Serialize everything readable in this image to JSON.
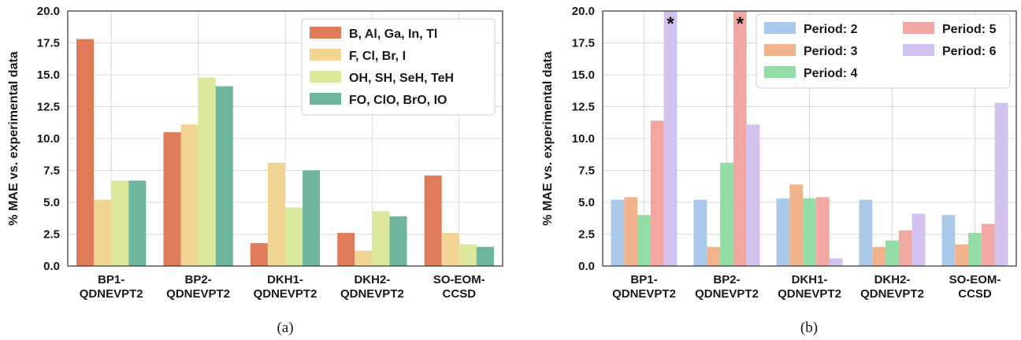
{
  "chart_data": [
    {
      "type": "bar",
      "caption": "(a)",
      "ylabel": "% MAE vs. experimental data",
      "ylim": [
        0,
        20
      ],
      "yticks": [
        "0.0",
        "2.5",
        "5.0",
        "7.5",
        "10.0",
        "12.5",
        "15.0",
        "17.5",
        "20.0"
      ],
      "grid": true,
      "legend_position": "top-right",
      "legend_columns": 1,
      "categories": [
        [
          "BP1-",
          "QDNEVPT2"
        ],
        [
          "BP2-",
          "QDNEVPT2"
        ],
        [
          "DKH1-",
          "QDNEVPT2"
        ],
        [
          "DKH2-",
          "QDNEVPT2"
        ],
        [
          "SO-EOM-",
          "CCSD"
        ]
      ],
      "series": [
        {
          "name": "B, Al, Ga, In, Tl",
          "color": "#e07b5a",
          "values": [
            17.8,
            10.5,
            1.8,
            2.6,
            7.1
          ]
        },
        {
          "name": "F, Cl, Br, I",
          "color": "#f3d593",
          "values": [
            5.2,
            11.1,
            8.1,
            1.2,
            2.6
          ]
        },
        {
          "name": "OH, SH, SeH, TeH",
          "color": "#dde89c",
          "values": [
            6.7,
            14.8,
            4.6,
            4.3,
            1.7
          ]
        },
        {
          "name": "FO, ClO, BrO, IO",
          "color": "#6fb59f",
          "values": [
            6.7,
            14.1,
            7.5,
            3.9,
            1.5
          ]
        }
      ]
    },
    {
      "type": "bar",
      "caption": "(b)",
      "ylabel": "% MAE vs. experimental data",
      "ylim": [
        0,
        20
      ],
      "yticks": [
        "0.0",
        "2.5",
        "5.0",
        "7.5",
        "10.0",
        "12.5",
        "15.0",
        "17.5",
        "20.0"
      ],
      "grid": true,
      "legend_position": "top-right",
      "legend_columns": 2,
      "categories": [
        [
          "BP1-",
          "QDNEVPT2"
        ],
        [
          "BP2-",
          "QDNEVPT2"
        ],
        [
          "DKH1-",
          "QDNEVPT2"
        ],
        [
          "DKH2-",
          "QDNEVPT2"
        ],
        [
          "SO-EOM-",
          "CCSD"
        ]
      ],
      "series": [
        {
          "name": "Period: 2",
          "color": "#a9c8ea",
          "values": [
            5.2,
            5.2,
            5.3,
            5.2,
            4.0
          ]
        },
        {
          "name": "Period: 3",
          "color": "#f1b38c",
          "values": [
            5.4,
            1.5,
            6.4,
            1.5,
            1.7
          ]
        },
        {
          "name": "Period: 4",
          "color": "#94dca6",
          "values": [
            4.0,
            8.1,
            5.3,
            2.0,
            2.6
          ]
        },
        {
          "name": "Period: 5",
          "color": "#f2a8a2",
          "values": [
            11.4,
            20.0,
            5.4,
            2.8,
            3.3
          ]
        },
        {
          "name": "Period: 6",
          "color": "#d1c2f0",
          "values": [
            20.0,
            11.1,
            0.6,
            4.1,
            12.8
          ]
        }
      ],
      "annotations": [
        {
          "text": "*",
          "category_index": 0,
          "series_index": 4
        },
        {
          "text": "*",
          "category_index": 1,
          "series_index": 3
        }
      ]
    }
  ]
}
